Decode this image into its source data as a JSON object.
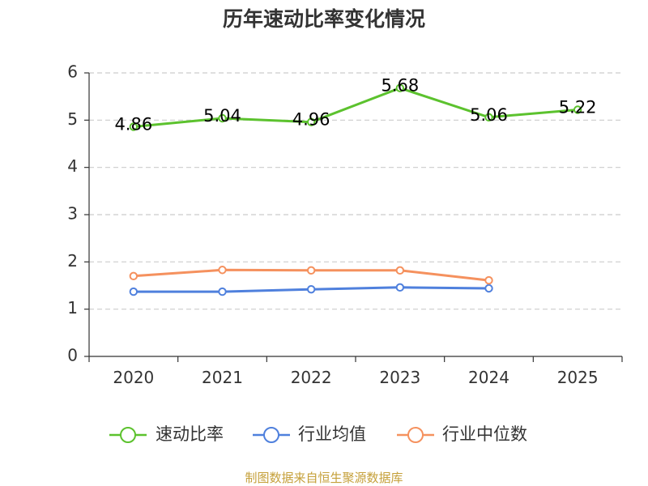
{
  "chart_data": {
    "type": "line",
    "title": "历年速动比率变化情况",
    "categories": [
      "2020",
      "2021",
      "2022",
      "2023",
      "2024",
      "2025"
    ],
    "ylim": [
      0,
      6
    ],
    "yticks": [
      0,
      1,
      2,
      3,
      4,
      5,
      6
    ],
    "grid": true,
    "series": [
      {
        "name": "速动比率",
        "color": "#5cc22e",
        "values": [
          4.86,
          5.04,
          4.96,
          5.68,
          5.06,
          5.22
        ],
        "labels": true
      },
      {
        "name": "行业均值",
        "color": "#4f80dd",
        "values": [
          1.37,
          1.37,
          1.42,
          1.46,
          1.44,
          null
        ],
        "labels": false
      },
      {
        "name": "行业中位数",
        "color": "#f5915e",
        "values": [
          1.7,
          1.83,
          1.82,
          1.82,
          1.61,
          null
        ],
        "labels": false
      }
    ]
  },
  "footer": {
    "source": "制图数据来自恒生聚源数据库",
    "color": "#c5a03a"
  }
}
